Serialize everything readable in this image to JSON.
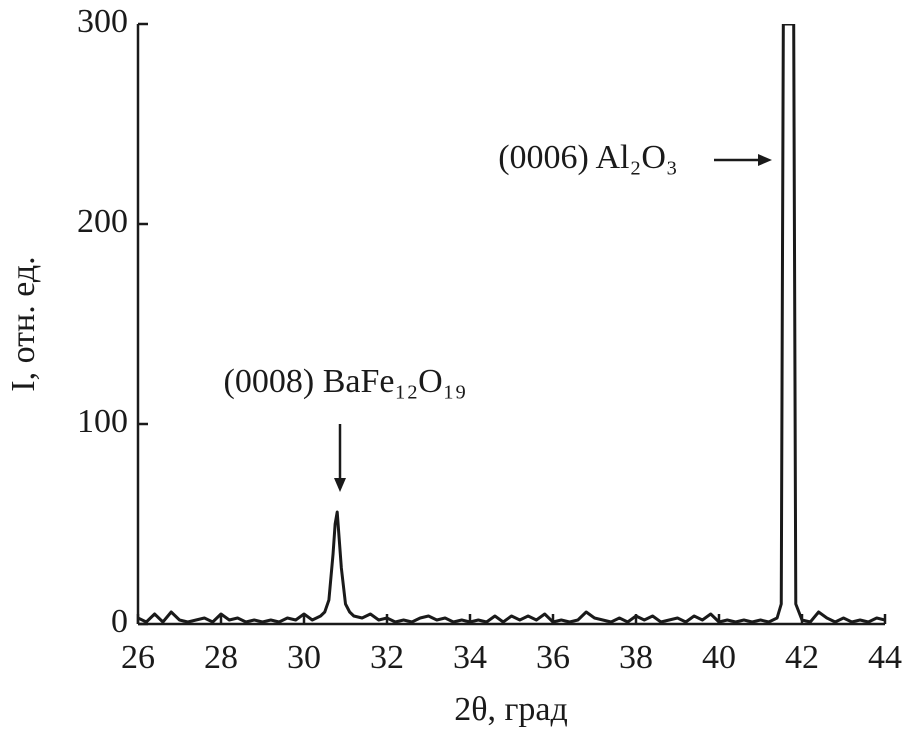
{
  "chart_data": {
    "type": "line",
    "xlabel": "2θ, град",
    "ylabel": "I, отн. ед.",
    "annotations": [
      "(0008) BaFe₁₂O₁₉",
      "(0006) Al₂O₃"
    ],
    "color": "#1a1a1a",
    "xlim": [
      26,
      44
    ],
    "xticks": [
      26,
      28,
      30,
      32,
      34,
      36,
      38,
      40,
      42,
      44
    ],
    "ylim": [
      0,
      300
    ],
    "yticks": [
      0,
      100,
      200,
      300
    ],
    "x": [
      26.0,
      26.2,
      26.4,
      26.6,
      26.8,
      27.0,
      27.2,
      27.4,
      27.6,
      27.8,
      28.0,
      28.2,
      28.4,
      28.6,
      28.8,
      29.0,
      29.2,
      29.4,
      29.6,
      29.8,
      30.0,
      30.2,
      30.4,
      30.5,
      30.6,
      30.7,
      30.75,
      30.8,
      30.9,
      31.0,
      31.1,
      31.2,
      31.4,
      31.6,
      31.8,
      32.0,
      32.2,
      32.4,
      32.6,
      32.8,
      33.0,
      33.2,
      33.4,
      33.6,
      33.8,
      34.0,
      34.2,
      34.4,
      34.6,
      34.8,
      35.0,
      35.2,
      35.4,
      35.6,
      35.8,
      36.0,
      36.2,
      36.4,
      36.6,
      36.8,
      37.0,
      37.2,
      37.4,
      37.6,
      37.8,
      38.0,
      38.2,
      38.4,
      38.6,
      38.8,
      39.0,
      39.2,
      39.4,
      39.6,
      39.8,
      40.0,
      40.2,
      40.4,
      40.6,
      40.8,
      41.0,
      41.2,
      41.4,
      41.5,
      41.55,
      41.8,
      41.85,
      42.0,
      42.2,
      42.4,
      42.6,
      42.8,
      43.0,
      43.2,
      43.4,
      43.6,
      43.8,
      44.0
    ],
    "values": [
      3,
      1,
      5,
      1,
      6,
      2,
      1,
      2,
      3,
      1,
      5,
      2,
      3,
      1,
      2,
      1,
      2,
      1,
      3,
      2,
      5,
      2,
      4,
      6,
      12,
      35,
      50,
      56,
      28,
      10,
      6,
      4,
      3,
      5,
      2,
      3,
      1,
      2,
      1,
      3,
      4,
      2,
      3,
      1,
      2,
      1,
      2,
      1,
      4,
      1,
      4,
      2,
      4,
      2,
      5,
      1,
      2,
      1,
      2,
      6,
      3,
      2,
      1,
      3,
      1,
      4,
      2,
      4,
      1,
      2,
      3,
      1,
      4,
      2,
      5,
      1,
      2,
      1,
      2,
      1,
      2,
      1,
      3,
      10,
      300,
      300,
      10,
      2,
      1,
      6,
      3,
      1,
      3,
      1,
      2,
      1,
      3,
      2
    ]
  }
}
